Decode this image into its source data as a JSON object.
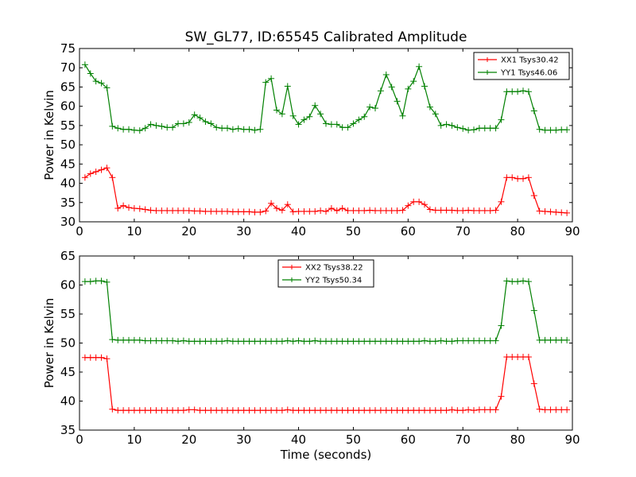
{
  "chart_data": [
    {
      "type": "line",
      "title": "SW_GL77, ID:65545 Calibrated Amplitude",
      "xlabel": "",
      "ylabel": "Power in Kelvin",
      "xlim": [
        0,
        90
      ],
      "ylim": [
        30,
        75
      ],
      "xticks": [
        "0",
        "10",
        "20",
        "30",
        "40",
        "50",
        "60",
        "70",
        "80",
        "90"
      ],
      "yticks": [
        "30",
        "35",
        "40",
        "45",
        "50",
        "55",
        "60",
        "65",
        "70",
        "75"
      ],
      "grid": false,
      "legend_position": "top-right",
      "x": [
        1,
        2,
        3,
        4,
        5,
        6,
        7,
        8,
        9,
        10,
        11,
        12,
        13,
        14,
        15,
        16,
        17,
        18,
        19,
        20,
        21,
        22,
        23,
        24,
        25,
        26,
        27,
        28,
        29,
        30,
        31,
        32,
        33,
        34,
        35,
        36,
        37,
        38,
        39,
        40,
        41,
        42,
        43,
        44,
        45,
        46,
        47,
        48,
        49,
        50,
        51,
        52,
        53,
        54,
        55,
        56,
        57,
        58,
        59,
        60,
        61,
        62,
        63,
        64,
        65,
        66,
        67,
        68,
        69,
        70,
        71,
        72,
        73,
        74,
        75,
        76,
        77,
        78,
        79,
        80,
        81,
        82,
        83,
        84,
        85,
        86,
        87,
        88,
        89
      ],
      "series": [
        {
          "name": "XX1 Tsys30.42",
          "color": "#ff0000",
          "values": [
            41.5,
            42.5,
            43.0,
            43.5,
            44.0,
            41.5,
            33.5,
            34.2,
            33.7,
            33.5,
            33.4,
            33.2,
            33.0,
            32.9,
            32.9,
            32.9,
            32.9,
            32.9,
            32.9,
            32.9,
            32.8,
            32.8,
            32.7,
            32.7,
            32.7,
            32.7,
            32.7,
            32.6,
            32.6,
            32.6,
            32.6,
            32.5,
            32.5,
            32.8,
            34.8,
            33.5,
            33.0,
            34.5,
            32.6,
            32.7,
            32.7,
            32.7,
            32.7,
            32.9,
            32.7,
            33.5,
            32.9,
            33.5,
            32.9,
            32.9,
            32.9,
            32.9,
            33.0,
            32.9,
            32.9,
            32.9,
            32.9,
            32.9,
            33.0,
            34.2,
            35.2,
            35.2,
            34.5,
            33.2,
            33.0,
            33.0,
            33.0,
            33.0,
            32.9,
            32.9,
            33.0,
            32.9,
            32.9,
            32.9,
            32.9,
            33.0,
            35.2,
            41.5,
            41.5,
            41.2,
            41.2,
            41.5,
            36.8,
            32.8,
            32.7,
            32.6,
            32.5,
            32.4,
            32.3
          ]
        },
        {
          "name": "YY1 Tsys46.06",
          "color": "#008000",
          "values": [
            70.8,
            68.5,
            66.5,
            66.0,
            64.8,
            54.8,
            54.3,
            54.0,
            54.0,
            53.8,
            53.7,
            54.3,
            55.3,
            55.0,
            54.8,
            54.5,
            54.5,
            55.5,
            55.5,
            55.8,
            57.8,
            57.0,
            56.0,
            55.5,
            54.5,
            54.3,
            54.3,
            54.0,
            54.2,
            54.0,
            54.0,
            53.8,
            54.0,
            66.2,
            67.2,
            59.0,
            58.0,
            65.2,
            57.5,
            55.3,
            56.5,
            57.3,
            60.2,
            58.0,
            55.5,
            55.3,
            55.3,
            54.5,
            54.5,
            55.5,
            56.5,
            57.3,
            59.8,
            59.5,
            64.0,
            68.2,
            65.0,
            61.3,
            57.5,
            64.5,
            66.5,
            70.3,
            65.2,
            59.8,
            58.0,
            55.0,
            55.3,
            55.0,
            54.5,
            54.2,
            53.8,
            53.9,
            54.3,
            54.3,
            54.3,
            54.3,
            56.5,
            63.8,
            63.8,
            63.8,
            64.0,
            63.8,
            58.8,
            54.0,
            53.8,
            53.8,
            53.8,
            53.9,
            53.9
          ]
        }
      ]
    },
    {
      "type": "line",
      "title": "",
      "xlabel": "Time (seconds)",
      "ylabel": "Power in Kelvin",
      "xlim": [
        0,
        90
      ],
      "ylim": [
        35,
        65
      ],
      "xticks": [
        "0",
        "10",
        "20",
        "30",
        "40",
        "50",
        "60",
        "70",
        "80",
        "90"
      ],
      "yticks": [
        "35",
        "40",
        "45",
        "50",
        "55",
        "60",
        "65"
      ],
      "grid": false,
      "legend_position": "top-center",
      "x": [
        1,
        2,
        3,
        4,
        5,
        6,
        7,
        8,
        9,
        10,
        11,
        12,
        13,
        14,
        15,
        16,
        17,
        18,
        19,
        20,
        21,
        22,
        23,
        24,
        25,
        26,
        27,
        28,
        29,
        30,
        31,
        32,
        33,
        34,
        35,
        36,
        37,
        38,
        39,
        40,
        41,
        42,
        43,
        44,
        45,
        46,
        47,
        48,
        49,
        50,
        51,
        52,
        53,
        54,
        55,
        56,
        57,
        58,
        59,
        60,
        61,
        62,
        63,
        64,
        65,
        66,
        67,
        68,
        69,
        70,
        71,
        72,
        73,
        74,
        75,
        76,
        77,
        78,
        79,
        80,
        81,
        82,
        83,
        84,
        85,
        86,
        87,
        88,
        89
      ],
      "series": [
        {
          "name": "XX2 Tsys38.22",
          "color": "#ff0000",
          "values": [
            47.5,
            47.5,
            47.5,
            47.5,
            47.3,
            38.6,
            38.4,
            38.4,
            38.4,
            38.4,
            38.4,
            38.4,
            38.4,
            38.4,
            38.4,
            38.4,
            38.4,
            38.4,
            38.4,
            38.5,
            38.5,
            38.4,
            38.4,
            38.4,
            38.4,
            38.4,
            38.4,
            38.4,
            38.4,
            38.4,
            38.4,
            38.4,
            38.4,
            38.4,
            38.4,
            38.4,
            38.4,
            38.5,
            38.4,
            38.4,
            38.4,
            38.4,
            38.4,
            38.4,
            38.4,
            38.4,
            38.4,
            38.4,
            38.4,
            38.4,
            38.4,
            38.4,
            38.4,
            38.4,
            38.4,
            38.4,
            38.4,
            38.4,
            38.4,
            38.4,
            38.4,
            38.4,
            38.4,
            38.4,
            38.4,
            38.4,
            38.4,
            38.5,
            38.4,
            38.4,
            38.5,
            38.4,
            38.5,
            38.5,
            38.5,
            38.5,
            40.8,
            47.6,
            47.6,
            47.6,
            47.6,
            47.6,
            43.0,
            38.6,
            38.5,
            38.5,
            38.5,
            38.5,
            38.5
          ]
        },
        {
          "name": "YY2 Tsys50.34",
          "color": "#008000",
          "values": [
            60.6,
            60.6,
            60.7,
            60.7,
            60.5,
            50.6,
            50.5,
            50.5,
            50.5,
            50.5,
            50.5,
            50.4,
            50.4,
            50.4,
            50.4,
            50.4,
            50.4,
            50.3,
            50.4,
            50.3,
            50.3,
            50.3,
            50.3,
            50.3,
            50.3,
            50.3,
            50.4,
            50.3,
            50.3,
            50.3,
            50.3,
            50.3,
            50.3,
            50.3,
            50.3,
            50.3,
            50.3,
            50.4,
            50.3,
            50.4,
            50.3,
            50.3,
            50.4,
            50.3,
            50.3,
            50.3,
            50.3,
            50.3,
            50.3,
            50.3,
            50.3,
            50.3,
            50.3,
            50.3,
            50.3,
            50.3,
            50.3,
            50.3,
            50.3,
            50.3,
            50.3,
            50.3,
            50.4,
            50.3,
            50.3,
            50.4,
            50.3,
            50.3,
            50.4,
            50.4,
            50.4,
            50.4,
            50.4,
            50.4,
            50.4,
            50.4,
            53.0,
            60.7,
            60.6,
            60.6,
            60.7,
            60.6,
            55.6,
            50.5,
            50.5,
            50.5,
            50.5,
            50.5,
            50.5
          ]
        }
      ]
    }
  ]
}
